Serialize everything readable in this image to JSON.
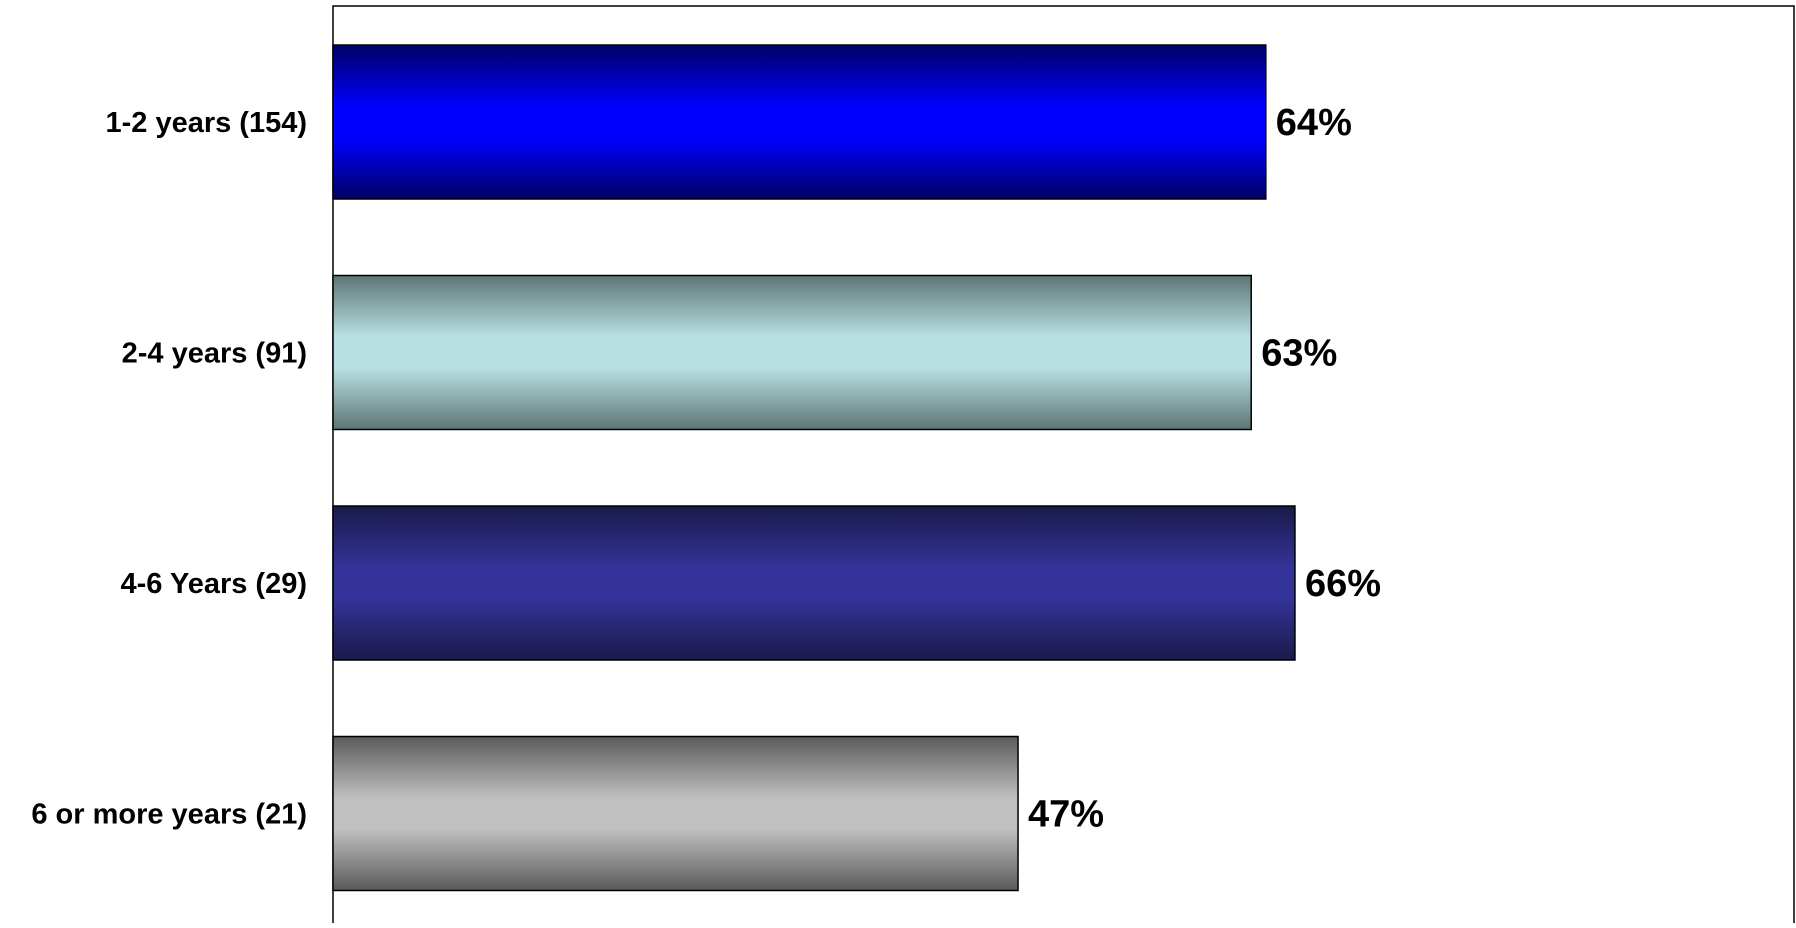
{
  "chart_data": {
    "type": "bar",
    "orientation": "horizontal",
    "title": "",
    "xlabel": "",
    "ylabel": "",
    "categories": [
      "1-2 years (154)",
      "2-4 years (91)",
      "4-6 Years (29)",
      "6 or more years (21)"
    ],
    "values": [
      64,
      63,
      66,
      47
    ],
    "value_labels": [
      "64%",
      "63%",
      "66%",
      "47%"
    ],
    "unit": "%",
    "xlim": [
      0,
      100
    ],
    "grid": false,
    "legend": "none",
    "bar_colors": [
      {
        "edge": "#000066",
        "center": "#0000ff"
      },
      {
        "edge": "#5f7575",
        "center": "#b8e0e2"
      },
      {
        "edge": "#1a1a4a",
        "center": "#343399"
      },
      {
        "edge": "#5a5a5a",
        "center": "#c0c0c0"
      }
    ]
  }
}
